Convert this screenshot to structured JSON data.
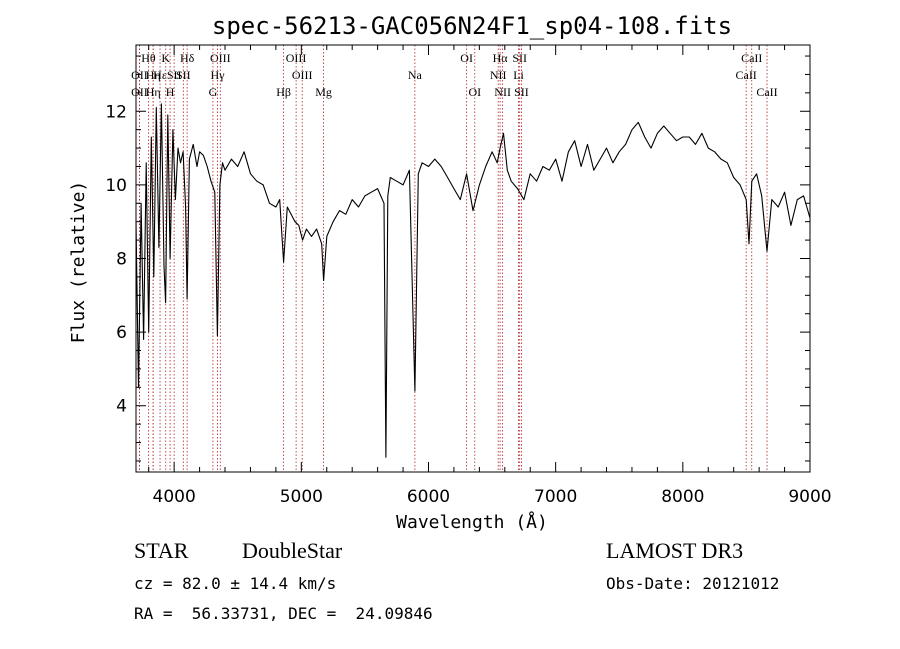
{
  "chart_data": {
    "type": "line",
    "title": "spec-56213-GAC056N24F1_sp04-108.fits",
    "xlabel": "Wavelength (Å)",
    "ylabel": "Flux (relative)",
    "xlim": [
      3700,
      9000
    ],
    "ylim": [
      2.2,
      13.8
    ],
    "xticks": [
      4000,
      5000,
      6000,
      7000,
      8000,
      9000
    ],
    "yticks": [
      4,
      6,
      8,
      10,
      12
    ],
    "grid": false,
    "line_color": "#000000",
    "marker_color": "#b22222",
    "series": [
      {
        "x": [
          3700,
          3720,
          3740,
          3760,
          3780,
          3800,
          3820,
          3840,
          3860,
          3880,
          3900,
          3920,
          3933,
          3950,
          3968,
          3990,
          4010,
          4030,
          4050,
          4070,
          4090,
          4102,
          4120,
          4150,
          4180,
          4200,
          4230,
          4260,
          4290,
          4320,
          4340,
          4360,
          4380,
          4400,
          4450,
          4500,
          4550,
          4600,
          4650,
          4700,
          4750,
          4800,
          4830,
          4861,
          4890,
          4920,
          4950,
          4980,
          5010,
          5040,
          5080,
          5120,
          5160,
          5175,
          5200,
          5250,
          5300,
          5350,
          5400,
          5450,
          5500,
          5550,
          5600,
          5650,
          5665,
          5680,
          5700,
          5750,
          5800,
          5850,
          5893,
          5920,
          5950,
          6000,
          6050,
          6100,
          6150,
          6200,
          6250,
          6300,
          6350,
          6400,
          6450,
          6500,
          6540,
          6563,
          6590,
          6620,
          6650,
          6700,
          6750,
          6800,
          6850,
          6900,
          6950,
          7000,
          7050,
          7100,
          7150,
          7200,
          7250,
          7300,
          7350,
          7400,
          7450,
          7500,
          7550,
          7600,
          7650,
          7700,
          7750,
          7800,
          7850,
          7900,
          7950,
          8000,
          8050,
          8100,
          8150,
          8200,
          8250,
          8300,
          8350,
          8400,
          8450,
          8498,
          8520,
          8542,
          8580,
          8620,
          8662,
          8700,
          8750,
          8800,
          8850,
          8900,
          8950,
          9000
        ],
        "y": [
          9.0,
          4.5,
          9.5,
          5.8,
          10.6,
          6.0,
          11.3,
          7.5,
          12.1,
          8.3,
          12.2,
          7.8,
          6.8,
          11.9,
          8.0,
          11.5,
          9.6,
          11.0,
          10.6,
          10.9,
          9.4,
          6.9,
          10.7,
          11.1,
          10.5,
          10.9,
          10.8,
          10.5,
          10.1,
          9.8,
          5.9,
          10.0,
          10.6,
          10.4,
          10.7,
          10.5,
          10.9,
          10.3,
          10.1,
          10.0,
          9.5,
          9.4,
          9.6,
          7.9,
          9.4,
          9.2,
          9.0,
          8.9,
          8.5,
          8.8,
          8.6,
          8.8,
          8.4,
          7.4,
          8.6,
          9.0,
          9.3,
          9.2,
          9.6,
          9.4,
          9.7,
          9.8,
          9.9,
          9.5,
          2.6,
          9.7,
          10.2,
          10.1,
          10.0,
          10.4,
          4.4,
          10.3,
          10.6,
          10.5,
          10.7,
          10.5,
          10.2,
          9.9,
          9.6,
          10.3,
          9.3,
          10.0,
          10.5,
          10.9,
          10.6,
          11.0,
          11.4,
          10.4,
          10.1,
          9.9,
          9.6,
          10.3,
          10.1,
          10.5,
          10.4,
          10.7,
          10.1,
          10.9,
          11.2,
          10.5,
          11.1,
          10.4,
          10.7,
          11.0,
          10.6,
          10.9,
          11.1,
          11.5,
          11.7,
          11.3,
          11.0,
          11.4,
          11.6,
          11.4,
          11.2,
          11.3,
          11.3,
          11.1,
          11.4,
          11.0,
          10.9,
          10.7,
          10.6,
          10.2,
          10.0,
          9.6,
          8.4,
          10.1,
          10.3,
          9.7,
          8.2,
          9.6,
          9.4,
          9.8,
          8.9,
          9.6,
          9.7,
          9.1
        ]
      }
    ],
    "line_markers": [
      {
        "label": "Hθ",
        "x": 3798,
        "row": 0
      },
      {
        "label": "OII",
        "x": 3727,
        "row": 1
      },
      {
        "label": "OII",
        "x": 3727,
        "row": 2
      },
      {
        "label": "Hη",
        "x": 3835,
        "row": 1
      },
      {
        "label": "Hη",
        "x": 3835,
        "row": 2
      },
      {
        "label": "Hε",
        "x": 3889,
        "row": 1
      },
      {
        "label": "K",
        "x": 3934,
        "row": 0
      },
      {
        "label": "H",
        "x": 3968,
        "row": 2
      },
      {
        "label": "SII",
        "x": 4000,
        "row": 1
      },
      {
        "label": "Hδ",
        "x": 4102,
        "row": 0
      },
      {
        "label": "SII",
        "x": 4072,
        "row": 1
      },
      {
        "label": "OIII",
        "x": 4363,
        "row": 0
      },
      {
        "label": "Hγ",
        "x": 4341,
        "row": 1
      },
      {
        "label": "G",
        "x": 4305,
        "row": 2
      },
      {
        "label": "Hβ",
        "x": 4861,
        "row": 2
      },
      {
        "label": "OIII",
        "x": 4959,
        "row": 0
      },
      {
        "label": "OIII",
        "x": 5007,
        "row": 1
      },
      {
        "label": "Mg",
        "x": 5175,
        "row": 2
      },
      {
        "label": "Na",
        "x": 5893,
        "row": 1
      },
      {
        "label": "OI",
        "x": 6300,
        "row": 0
      },
      {
        "label": "OI",
        "x": 6364,
        "row": 2
      },
      {
        "label": "Hα",
        "x": 6563,
        "row": 0
      },
      {
        "label": "NII",
        "x": 6548,
        "row": 1
      },
      {
        "label": "NII",
        "x": 6583,
        "row": 2
      },
      {
        "label": "SII",
        "x": 6717,
        "row": 0
      },
      {
        "label": "Li",
        "x": 6708,
        "row": 1
      },
      {
        "label": "SII",
        "x": 6731,
        "row": 2
      },
      {
        "label": "CaII",
        "x": 8498,
        "row": 1
      },
      {
        "label": "CaII",
        "x": 8542,
        "row": 0
      },
      {
        "label": "CaII",
        "x": 8662,
        "row": 2
      }
    ]
  },
  "info": {
    "class_label": "STAR",
    "subclass_label": "DoubleStar",
    "survey": "LAMOST DR3",
    "cz": "cz = 82.0 ± 14.4 km/s",
    "obs_date": "Obs-Date: 20121012",
    "radec": "RA =  56.33731, DEC =  24.09846"
  }
}
